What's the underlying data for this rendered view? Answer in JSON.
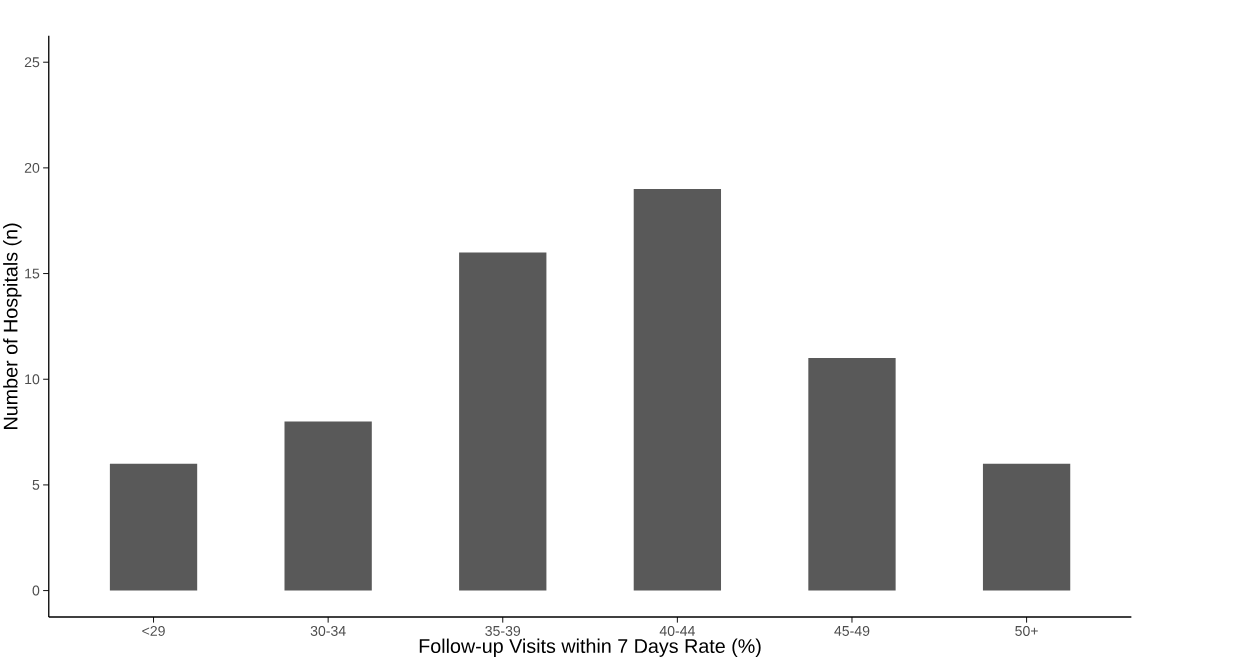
{
  "chart_data": {
    "type": "bar",
    "xlabel": "Follow-up Visits within 7 Days Rate (%)",
    "ylabel": "Number of Hospitals (n)",
    "categories": [
      "<29",
      "30-34",
      "35-39",
      "40-44",
      "45-49",
      "50+"
    ],
    "values": [
      6,
      8,
      16,
      19,
      11,
      6
    ],
    "color": "#595959",
    "ylim": [
      -1.25,
      26.25
    ],
    "yticks": [
      0,
      5,
      10,
      15,
      20,
      25
    ]
  }
}
